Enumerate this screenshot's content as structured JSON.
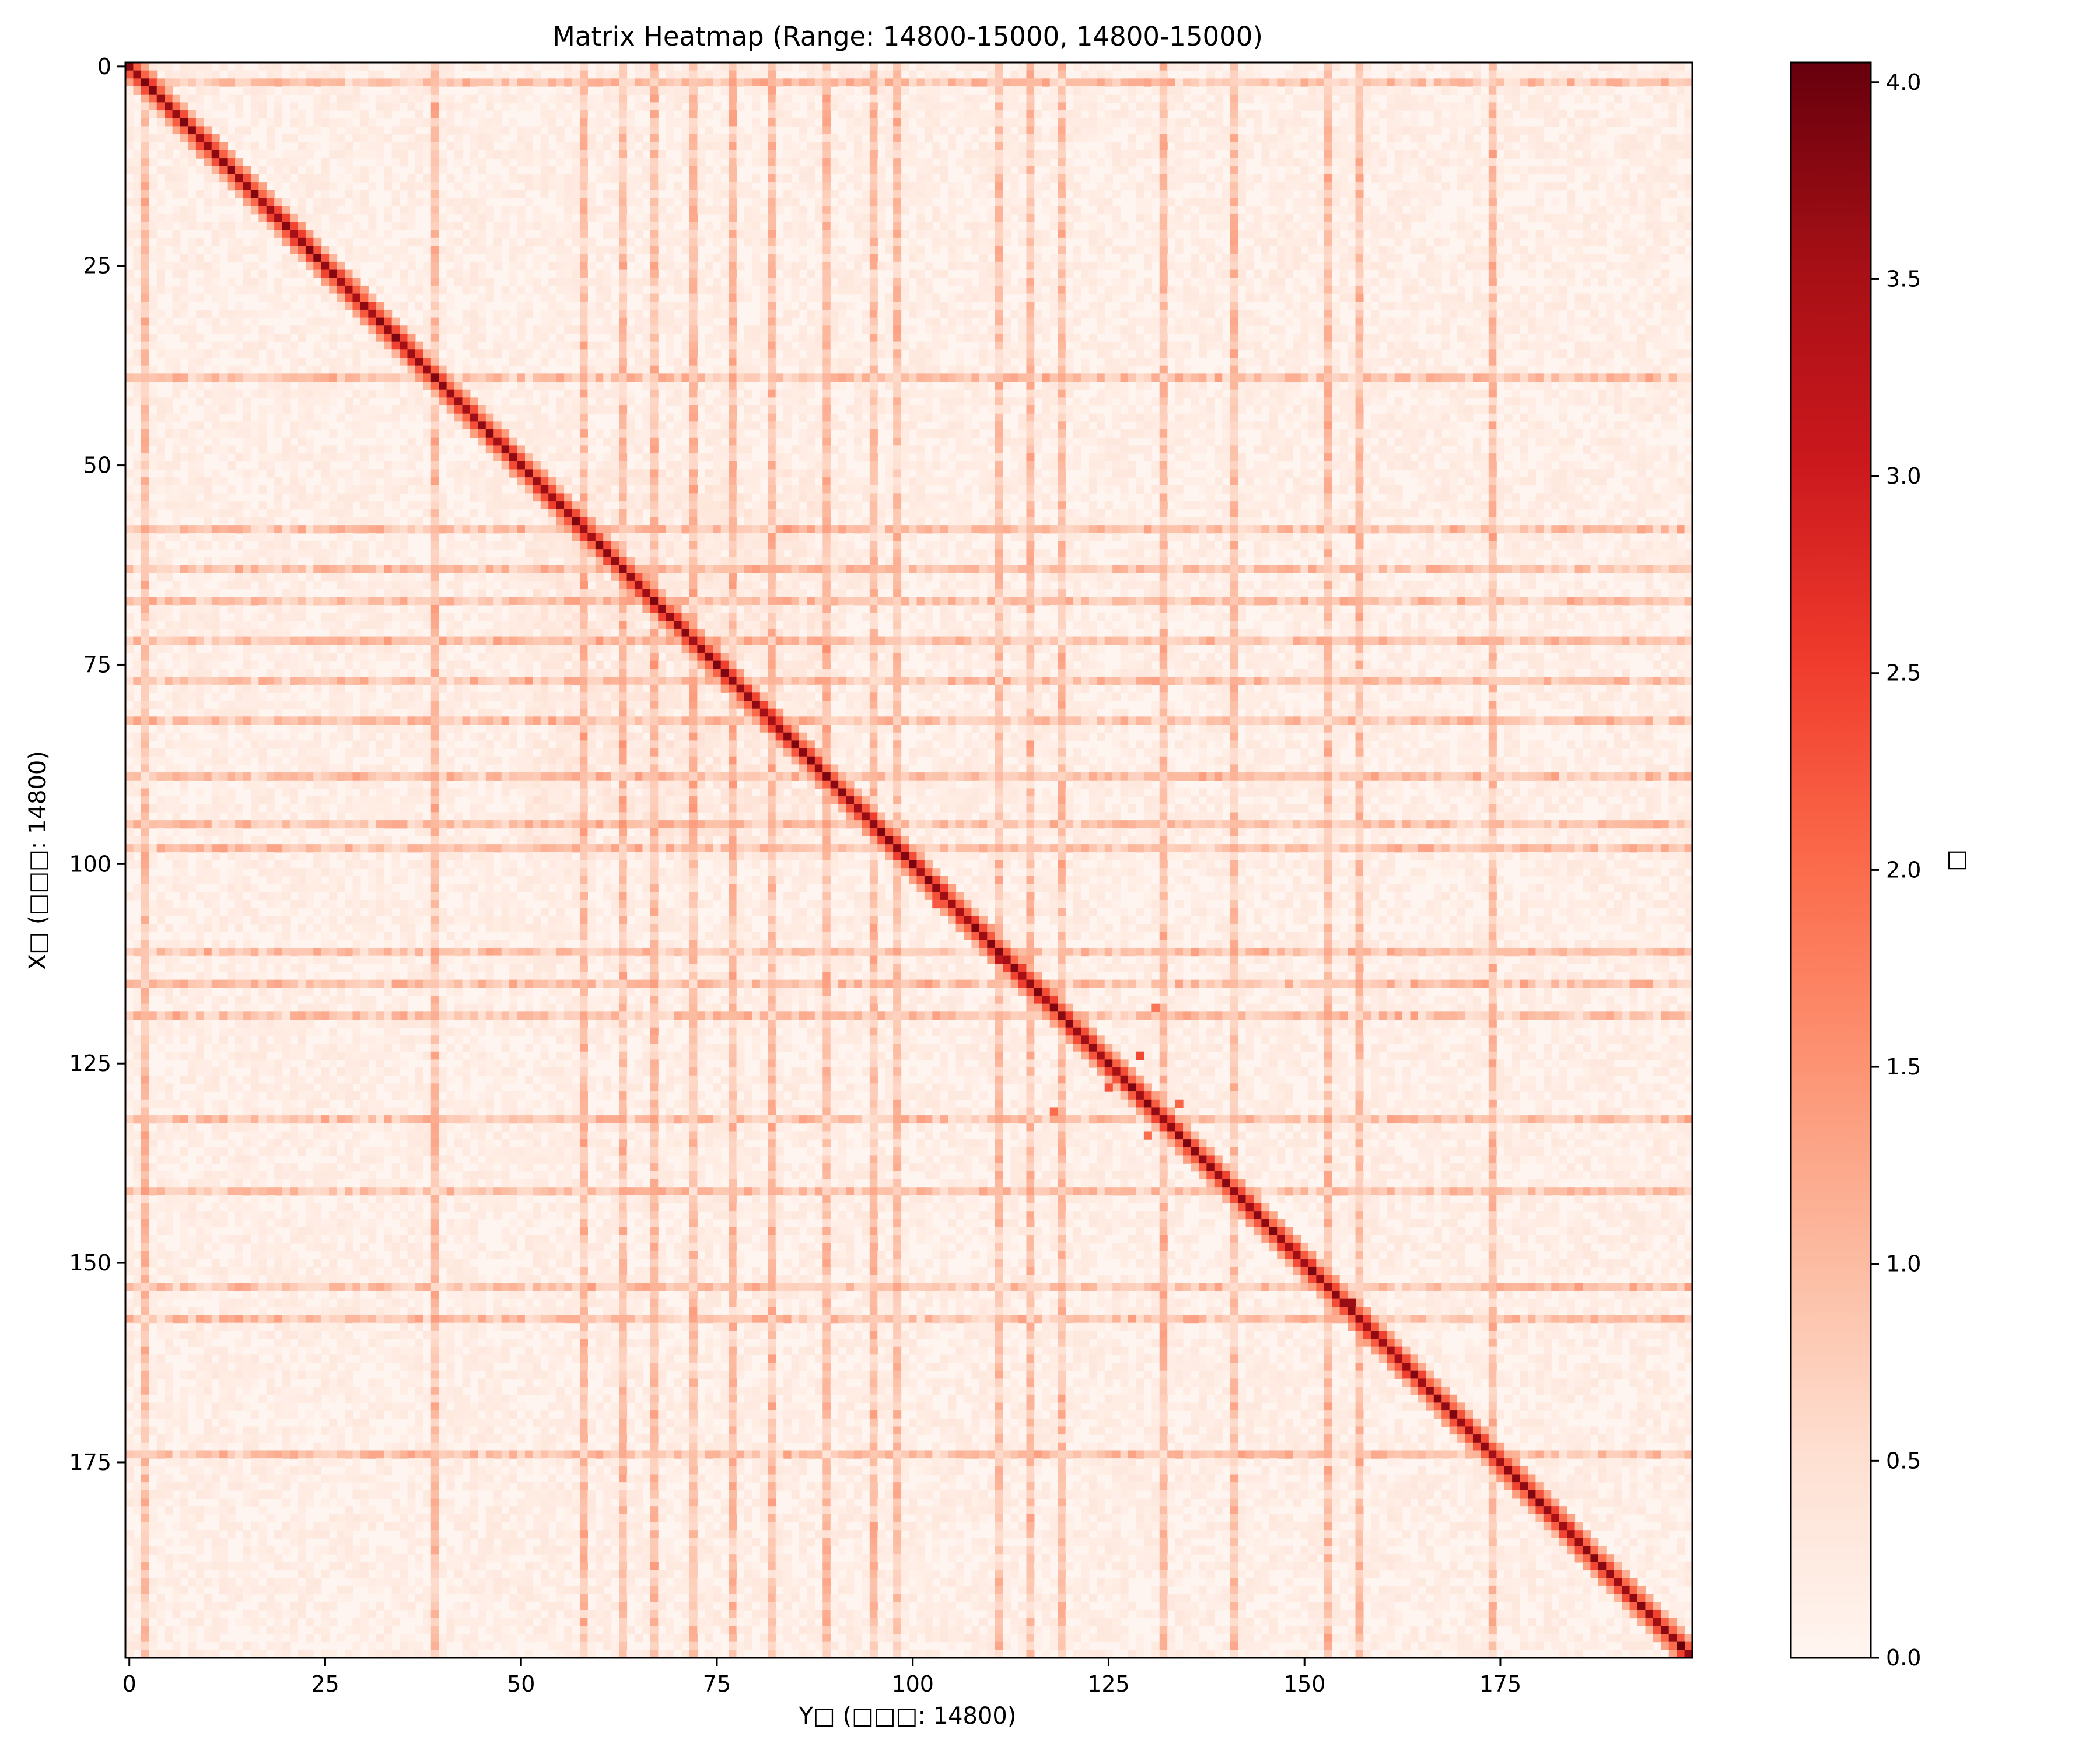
{
  "chart_data": {
    "type": "heatmap",
    "title": "Matrix Heatmap (Range: 14800-15000, 14800-15000)",
    "xlabel": "Y□ (□□□: 14800)",
    "ylabel": "X□ (□□□: 14800)",
    "colorbar_label": "□",
    "colormap": "Reds",
    "colors": {
      "low": "#fff5f0",
      "high": "#67000d"
    },
    "matrix_size": 200,
    "xlim": [
      0,
      199
    ],
    "ylim": [
      199,
      0
    ],
    "xticks": [
      0,
      25,
      50,
      75,
      100,
      125,
      150,
      175
    ],
    "yticks": [
      0,
      25,
      50,
      75,
      100,
      125,
      150,
      175
    ],
    "colorbar_range": [
      0.0,
      4.05
    ],
    "colorbar_ticks": [
      "0.0",
      "0.5",
      "1.0",
      "1.5",
      "2.0",
      "2.5",
      "3.0",
      "3.5",
      "4.0"
    ],
    "diagonal_value": 3.7,
    "background_value": 0.15,
    "band_indices": [
      2,
      39,
      58,
      63,
      67,
      72,
      77,
      82,
      89,
      95,
      98,
      111,
      115,
      119,
      132,
      141,
      153,
      157,
      174
    ],
    "band_value": 1.0,
    "hotspots": [
      {
        "row": 105,
        "col": 103,
        "value": 2.2
      },
      {
        "row": 112,
        "col": 111,
        "value": 3.2
      },
      {
        "row": 124,
        "col": 129,
        "value": 2.4
      },
      {
        "row": 128,
        "col": 125,
        "value": 2.3
      },
      {
        "row": 131,
        "col": 118,
        "value": 2.0
      },
      {
        "row": 130,
        "col": 134,
        "value": 2.1
      },
      {
        "row": 134,
        "col": 130,
        "value": 2.0
      },
      {
        "row": 118,
        "col": 131,
        "value": 1.9
      },
      {
        "row": 155,
        "col": 156,
        "value": 3.6
      },
      {
        "row": 198,
        "col": 198,
        "value": 4.05
      }
    ]
  }
}
